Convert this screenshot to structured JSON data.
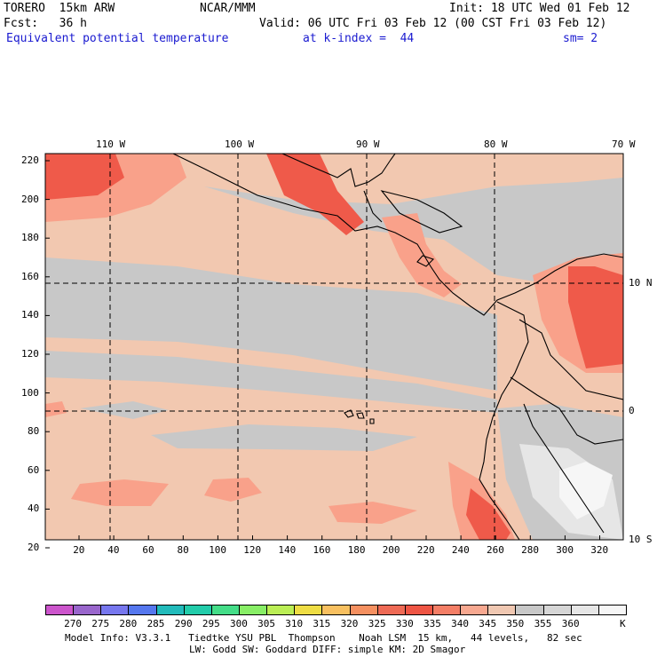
{
  "header": {
    "model": "TORERO  15km ARW",
    "org": "NCAR/MMM",
    "init": "Init: 18 UTC Wed 01 Feb 12",
    "fcst": "Fcst:   36 h",
    "valid": "Valid: 06 UTC Fri 03 Feb 12 (00 CST Fri 03 Feb 12)",
    "field": "Equivalent potential temperature",
    "level": "at k-index =  44",
    "smooth": "sm= 2"
  },
  "map": {
    "top_lon_labels": [
      "110 W",
      "100 W",
      "90 W",
      "80 W",
      "70 W"
    ],
    "right_lat_labels": [
      "10 N",
      "0",
      "10 S"
    ],
    "left_grid_labels": [
      "220",
      "200",
      "180",
      "160",
      "140",
      "120",
      "100",
      "80",
      "60",
      "40",
      "20"
    ],
    "bottom_grid_labels": [
      "20",
      "40",
      "60",
      "80",
      "100",
      "120",
      "140",
      "160",
      "180",
      "200",
      "220",
      "240",
      "260",
      "280",
      "300",
      "320"
    ],
    "colors": {
      "land_outline": "#000000",
      "ocean_low": "#c8c8c8",
      "ocean_mid": "#f2c8b0",
      "warm": "#f9a18a",
      "hot": "#ef5a4a",
      "cold_land": "#e6e6e6"
    }
  },
  "colorbar": {
    "colors": [
      "#cc55cc",
      "#9966cc",
      "#7777ee",
      "#5577ee",
      "#22bbbb",
      "#22ccaa",
      "#44dd88",
      "#88ee66",
      "#bbee55",
      "#eedd44",
      "#f8c060",
      "#f59060",
      "#ee6a55",
      "#ee5544",
      "#f47e66",
      "#f7a890",
      "#f0c8b2",
      "#c8c8c8",
      "#d6d6d6",
      "#e6e6e6",
      "#f6f6f6"
    ],
    "labels": [
      "270",
      "275",
      "280",
      "285",
      "290",
      "295",
      "300",
      "305",
      "310",
      "315",
      "320",
      "325",
      "330",
      "335",
      "340",
      "345",
      "350",
      "355",
      "360"
    ],
    "unit": "K"
  },
  "footer": {
    "line1": "Model Info: V3.3.1   Tiedtke YSU PBL  Thompson    Noah LSM  15 km,   44 levels,   82 sec",
    "line2": "LW: Godd SW: Goddard DIFF: simple KM: 2D Smagor"
  }
}
